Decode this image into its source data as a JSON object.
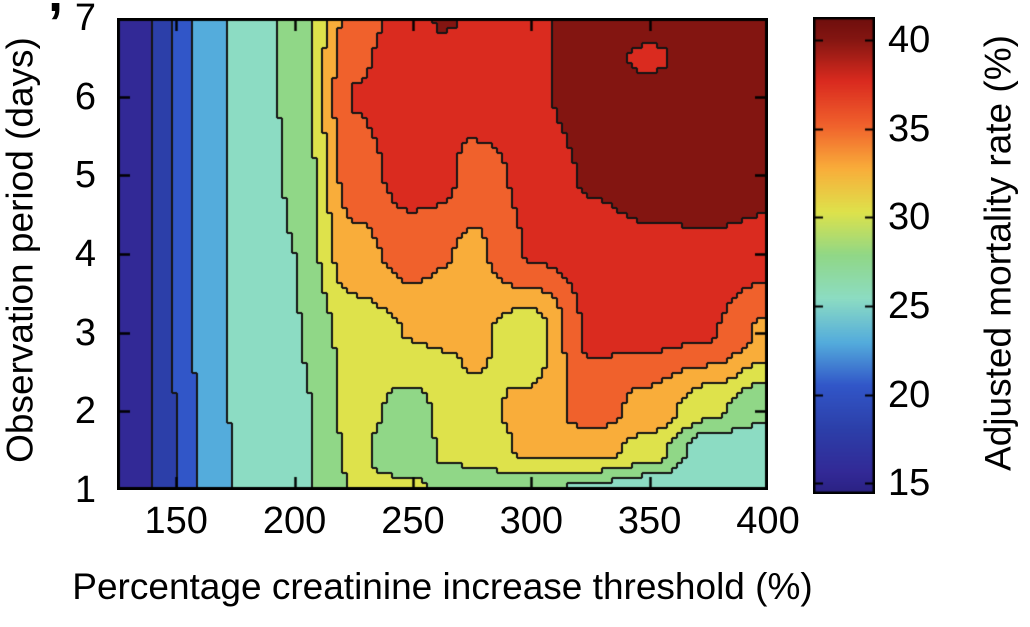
{
  "figure": {
    "crop_fragment": ",",
    "background_color": "#ffffff",
    "axis_color": "#000000"
  },
  "chart_data": {
    "type": "heatmap",
    "subtype": "filled-contour",
    "title": "",
    "xlabel": "Percentage creatinine increase threshold (%)",
    "ylabel": "Observation period (days)",
    "colorbar_label": "Adjusted mortality rate (%)",
    "x_range": [
      125,
      400
    ],
    "y_range": [
      1,
      7
    ],
    "z_range": [
      14.4,
      41.3
    ],
    "x_ticks": [
      150,
      200,
      250,
      300,
      350,
      400
    ],
    "y_ticks": [
      1,
      2,
      3,
      4,
      5,
      6,
      7
    ],
    "colorbar_ticks": [
      15,
      20,
      25,
      30,
      35,
      40
    ],
    "grid": false,
    "legend_position": "colorbar-right",
    "x": [
      125,
      137.5,
      150,
      162.5,
      175,
      200,
      225,
      250,
      262.5,
      275,
      300,
      325,
      350,
      375,
      400
    ],
    "y": [
      1,
      1.5,
      2,
      3,
      4,
      5,
      6,
      6.5,
      7
    ],
    "z": [
      [
        15.3,
        16.5,
        19.2,
        22.5,
        24.3,
        25.8,
        29.2,
        29.8,
        28.0,
        27.4,
        27.3,
        26.0,
        24.8,
        24.3,
        24.5
      ],
      [
        15.3,
        16.4,
        19.3,
        22.6,
        24.3,
        25.7,
        29.6,
        27.3,
        29.4,
        30.0,
        32.0,
        32.5,
        30.5,
        24.5,
        24.3
      ],
      [
        15.3,
        16.4,
        19.3,
        22.7,
        24.4,
        25.9,
        29.8,
        28.3,
        29.5,
        31.0,
        32.0,
        35.2,
        33.0,
        29.7,
        27.0
      ],
      [
        15.3,
        16.4,
        19.5,
        22.9,
        24.5,
        26.5,
        30.0,
        31.6,
        31.8,
        32.0,
        30.0,
        36.8,
        37.0,
        36.6,
        33.5
      ],
      [
        15.3,
        16.3,
        19.6,
        23.0,
        24.6,
        26.6,
        33.2,
        35.0,
        34.2,
        33.5,
        36.6,
        37.5,
        38.0,
        38.3,
        37.5
      ],
      [
        15.3,
        16.3,
        19.7,
        23.0,
        24.7,
        26.8,
        35.3,
        37.5,
        37.4,
        35.2,
        37.0,
        39.2,
        40.5,
        40.8,
        40.3
      ],
      [
        15.3,
        16.3,
        19.7,
        23.0,
        24.7,
        27.0,
        36.5,
        38.0,
        38.0,
        38.0,
        38.3,
        40.2,
        40.2,
        41.0,
        41.0
      ],
      [
        15.3,
        16.2,
        19.7,
        23.0,
        24.7,
        27.0,
        36.0,
        38.0,
        38.1,
        38.2,
        38.4,
        40.3,
        38.2,
        41.3,
        41.3
      ],
      [
        15.3,
        16.2,
        19.7,
        23.0,
        24.7,
        27.0,
        35.0,
        37.8,
        39.2,
        38.6,
        38.4,
        40.3,
        41.2,
        41.5,
        41.5
      ]
    ],
    "levels": [
      16.8,
      19.3,
      21.7,
      24.2,
      26.6,
      29.1,
      31.5,
      34.0,
      36.4,
      38.9
    ],
    "band_colors": [
      "#322996",
      "#2C3FA9",
      "#3156C8",
      "#54ACDC",
      "#8CDCC3",
      "#90D787",
      "#DEE24B",
      "#F9AD3A",
      "#F0612C",
      "#DA2B1F",
      "#831511"
    ],
    "colorbar_end_colors": [
      "#2A2182",
      "#6E0E0C"
    ],
    "contour_line_color": "#141414"
  }
}
